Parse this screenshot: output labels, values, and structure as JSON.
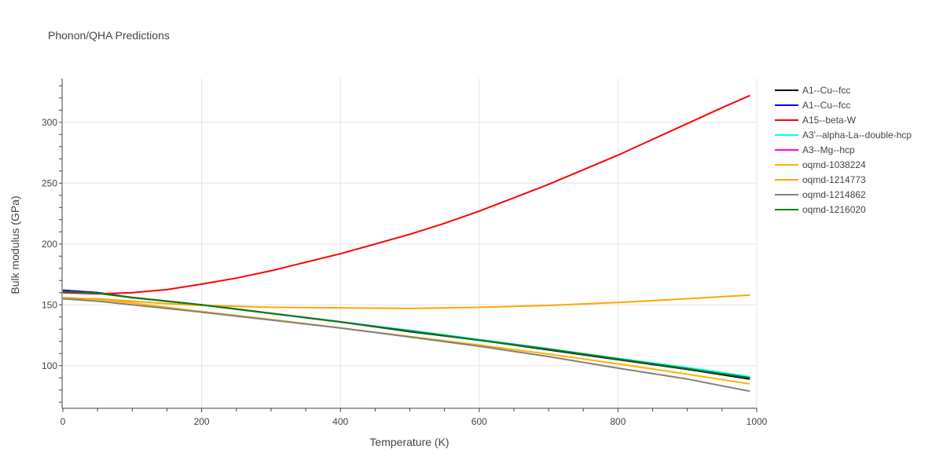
{
  "chart_data": {
    "type": "line",
    "title": "Phonon/QHA Predictions",
    "xlabel": "Temperature (K)",
    "ylabel": "Bulk modulus (GPa)",
    "xlim": [
      0,
      1000
    ],
    "ylim": [
      65,
      336
    ],
    "x_ticks": [
      0,
      200,
      400,
      600,
      800,
      1000
    ],
    "y_ticks": [
      100,
      150,
      200,
      250,
      300
    ],
    "grid": true,
    "legend_position": "right",
    "series": [
      {
        "name": "A1--Cu--fcc",
        "color": "#000000",
        "x": [
          0,
          50,
          100,
          150,
          200,
          300,
          400,
          500,
          600,
          700,
          800,
          900,
          990
        ],
        "y": [
          162,
          160,
          156,
          153,
          150,
          143,
          136,
          128,
          121,
          113,
          105,
          97,
          89
        ]
      },
      {
        "name": "A1--Cu--fcc",
        "color": "#0000ff",
        "x": [
          0,
          50,
          100,
          150,
          200,
          300,
          400,
          500,
          600,
          700,
          800,
          900,
          990
        ],
        "y": [
          162,
          160,
          156,
          153,
          150,
          143,
          136,
          128.5,
          121,
          113.5,
          105.5,
          97.5,
          90
        ]
      },
      {
        "name": "A15--beta-W",
        "color": "#ff0000",
        "x": [
          0,
          50,
          100,
          150,
          200,
          250,
          300,
          350,
          400,
          450,
          500,
          550,
          600,
          650,
          700,
          750,
          800,
          850,
          900,
          950,
          990
        ],
        "y": [
          160,
          159,
          160,
          162.5,
          167,
          172,
          178,
          185,
          192,
          200,
          208,
          217,
          227,
          238,
          249,
          261,
          273,
          286,
          299,
          312,
          322
        ]
      },
      {
        "name": "A3'--alpha-La--double-hcp",
        "color": "#00ffff",
        "x": [
          0,
          50,
          100,
          150,
          200,
          300,
          400,
          500,
          600,
          700,
          800,
          900,
          990
        ],
        "y": [
          161,
          159.5,
          156,
          153,
          150,
          143,
          136,
          129,
          121.5,
          114,
          106,
          98.5,
          91
        ]
      },
      {
        "name": "A3--Mg--hcp",
        "color": "#ff00ff",
        "x": [
          0,
          50,
          100,
          150,
          200,
          300,
          400,
          500,
          600,
          700,
          800,
          900,
          990
        ],
        "y": [
          161,
          159.5,
          156,
          153,
          150,
          143,
          136,
          128.5,
          121,
          113.5,
          105.5,
          97.5,
          90
        ]
      },
      {
        "name": "oqmd-1038224",
        "color": "#ffb300",
        "x": [
          0,
          50,
          100,
          150,
          200,
          300,
          400,
          500,
          600,
          700,
          800,
          900,
          990
        ],
        "y": [
          156,
          154.5,
          151.5,
          148,
          144.5,
          138,
          131,
          124,
          117,
          109.5,
          101.5,
          93,
          85
        ]
      },
      {
        "name": "oqmd-1214773",
        "color": "#ffa500",
        "x": [
          0,
          50,
          100,
          150,
          200,
          300,
          400,
          500,
          600,
          700,
          800,
          900,
          990
        ],
        "y": [
          155,
          155,
          153,
          151,
          149.5,
          148,
          147.5,
          147,
          148,
          149.5,
          152,
          155,
          158
        ]
      },
      {
        "name": "oqmd-1214862",
        "color": "#808080",
        "x": [
          0,
          50,
          100,
          150,
          200,
          300,
          400,
          500,
          600,
          700,
          800,
          900,
          990
        ],
        "y": [
          155,
          153,
          150,
          147,
          144,
          137.5,
          131,
          123.5,
          116,
          107.5,
          98,
          89,
          79
        ]
      },
      {
        "name": "oqmd-1216020",
        "color": "#008000",
        "x": [
          0,
          50,
          100,
          150,
          200,
          300,
          400,
          500,
          600,
          700,
          800,
          900,
          990
        ],
        "y": [
          161,
          159.5,
          156,
          153,
          150,
          143,
          136,
          128.5,
          121,
          113.5,
          105.5,
          97.5,
          90
        ]
      }
    ]
  }
}
